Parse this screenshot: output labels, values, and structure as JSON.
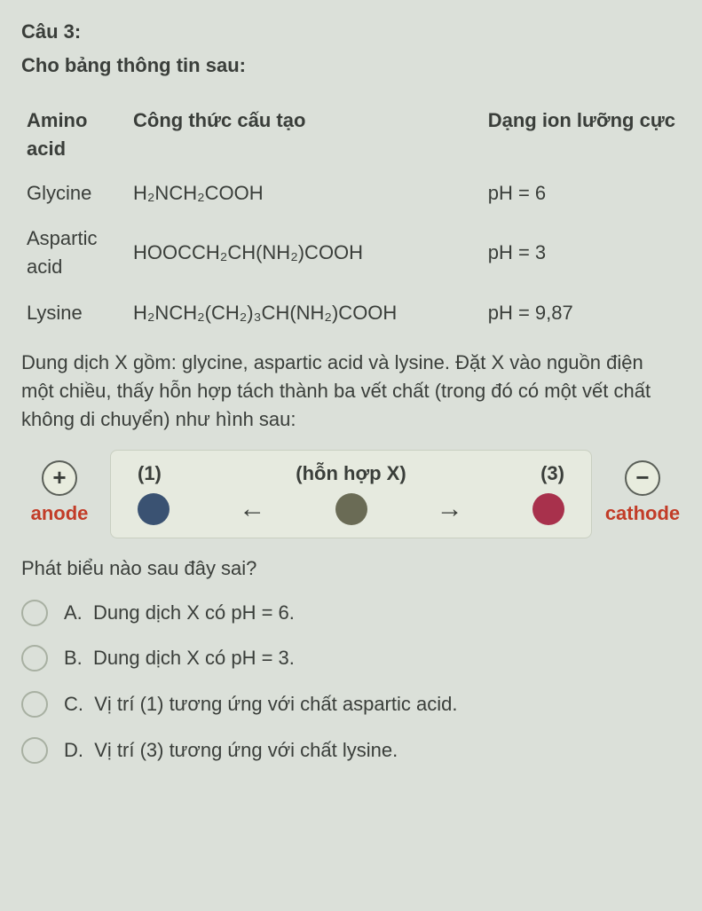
{
  "question": {
    "title": "Câu 3:",
    "subtitle": "Cho bảng thông tin sau:"
  },
  "table": {
    "headers": {
      "col1": "Amino acid",
      "col2": "Công thức cấu tạo",
      "col3": "Dạng ion lưỡng cực"
    },
    "rows": [
      {
        "name": "Glycine",
        "formula": "H₂NCH₂COOH",
        "ph": "pH = 6"
      },
      {
        "name": "Aspartic acid",
        "formula": "HOOCCH₂CH(NH₂)COOH",
        "ph": "pH = 3"
      },
      {
        "name": "Lysine",
        "formula": "H₂NCH₂(CH₂)₃CH(NH₂)COOH",
        "ph": "pH = 9,87"
      }
    ]
  },
  "body_text": "Dung dịch X gồm: glycine, aspartic acid và lysine. Đặt X vào nguồn điện một chiều, thấy hỗn hợp tách thành ba vết chất (trong đó có một vết chất không di chuyển) như hình sau:",
  "diagram": {
    "anode": {
      "symbol": "+",
      "label": "anode"
    },
    "cathode": {
      "symbol": "−",
      "label": "cathode"
    },
    "pos1_label": "(1)",
    "center_label": "(hỗn hợp X)",
    "pos3_label": "(3)",
    "arrow_left": "←",
    "arrow_right": "→",
    "colors": {
      "panel_bg": "#e6eadf",
      "dot1": "#3a5272",
      "dot_center": "#6a6b55",
      "dot3": "#a8314c"
    }
  },
  "prompt": "Phát biểu nào sau đây sai?",
  "options": [
    {
      "letter": "A.",
      "text": "Dung dịch X có pH = 6."
    },
    {
      "letter": "B.",
      "text": "Dung dịch X có pH = 3."
    },
    {
      "letter": "C.",
      "text": "Vị trí (1) tương ứng với chất aspartic acid."
    },
    {
      "letter": "D.",
      "text": "Vị trí (3) tương ứng với chất lysine."
    }
  ]
}
